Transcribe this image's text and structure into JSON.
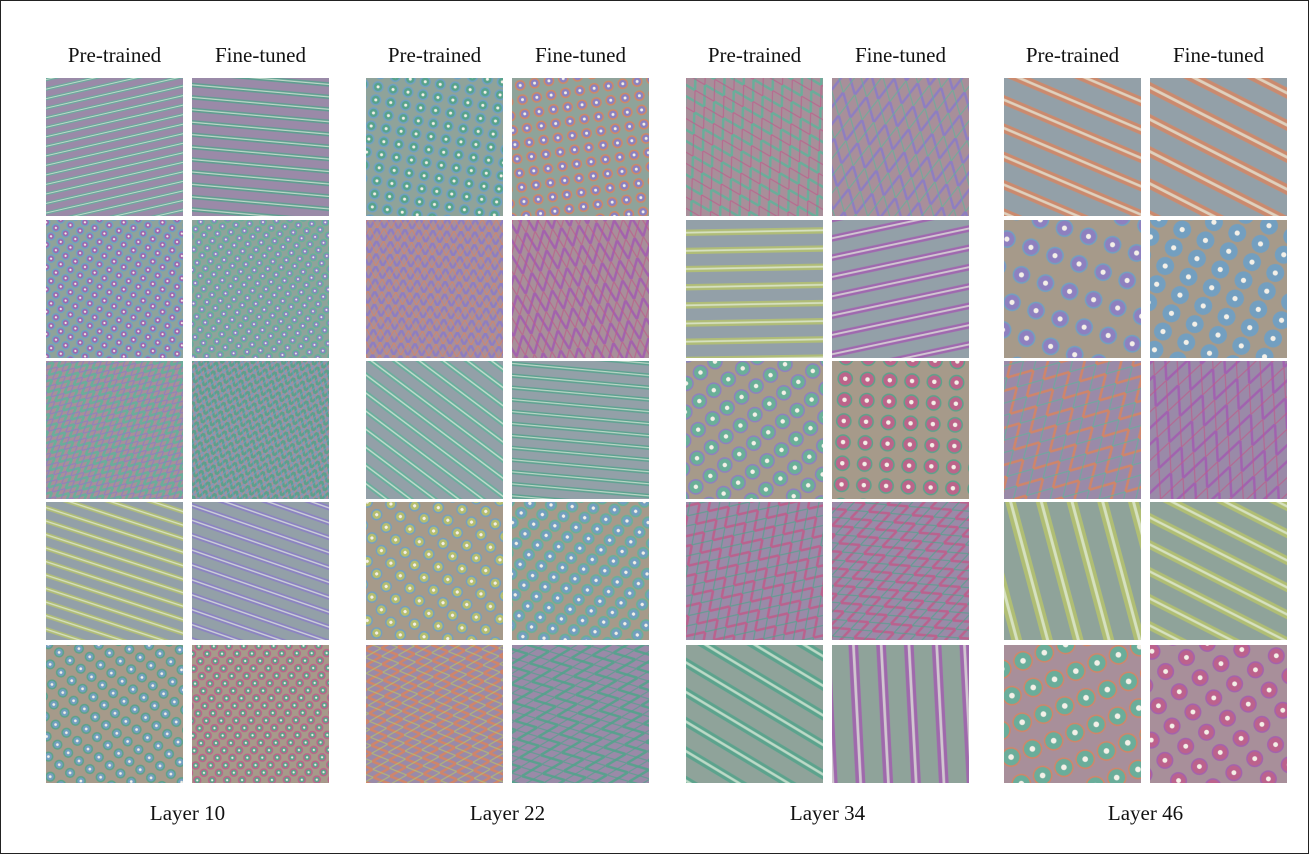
{
  "groups": [
    {
      "label": "Layer 10",
      "columns": [
        "Pre-trained",
        "Fine-tuned"
      ]
    },
    {
      "label": "Layer 22",
      "columns": [
        "Pre-trained",
        "Fine-tuned"
      ]
    },
    {
      "label": "Layer 34",
      "columns": [
        "Pre-trained",
        "Fine-tuned"
      ]
    },
    {
      "label": "Layer 46",
      "columns": [
        "Pre-trained",
        "Fine-tuned"
      ]
    }
  ]
}
